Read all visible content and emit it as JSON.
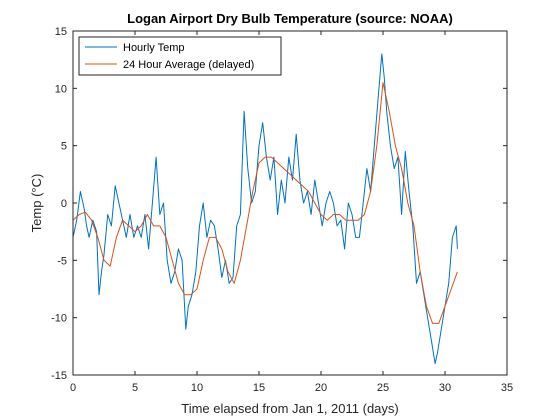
{
  "chart_data": {
    "type": "line",
    "title": "Logan Airport Dry Bulb Temperature (source: NOAA)",
    "xlabel": "Time elapsed from Jan 1, 2011 (days)",
    "ylabel": "Temp (°C)",
    "xlim": [
      0,
      35
    ],
    "ylim": [
      -15,
      15
    ],
    "xticks": [
      "0",
      "5",
      "10",
      "15",
      "20",
      "25",
      "30",
      "35"
    ],
    "yticks": [
      "15",
      "10",
      "5",
      "0",
      "-5",
      "-10",
      "-15"
    ],
    "grid": false,
    "legend_position": "top-left",
    "series": [
      {
        "name": "Hourly Temp",
        "color": "#0072BD",
        "x": [
          0,
          0.3,
          0.6,
          0.9,
          1.1,
          1.3,
          1.6,
          1.9,
          2.1,
          2.3,
          2.5,
          2.8,
          3.1,
          3.4,
          3.7,
          4.0,
          4.3,
          4.6,
          4.9,
          5.2,
          5.5,
          5.8,
          6.1,
          6.4,
          6.7,
          7.0,
          7.3,
          7.6,
          7.9,
          8.2,
          8.5,
          8.8,
          9.1,
          9.3,
          9.6,
          9.9,
          10.2,
          10.5,
          10.8,
          11.1,
          11.4,
          11.7,
          12.0,
          12.3,
          12.6,
          12.9,
          13.2,
          13.5,
          13.8,
          14.1,
          14.4,
          14.7,
          15.0,
          15.3,
          15.6,
          15.9,
          16.2,
          16.5,
          16.8,
          17.1,
          17.4,
          17.7,
          18.0,
          18.3,
          18.6,
          18.9,
          19.2,
          19.5,
          19.8,
          20.1,
          20.4,
          20.7,
          21.0,
          21.3,
          21.6,
          21.9,
          22.2,
          22.5,
          22.8,
          23.1,
          23.4,
          23.7,
          24.0,
          24.3,
          24.6,
          24.9,
          25.1,
          25.3,
          25.6,
          25.9,
          26.2,
          26.5,
          26.8,
          27.1,
          27.4,
          27.7,
          28.0,
          28.3,
          28.6,
          28.9,
          29.2,
          29.4,
          29.7,
          30.0,
          30.3,
          30.6,
          30.9,
          31.0
        ],
        "y": [
          -3,
          -1.5,
          1,
          -0.5,
          -2,
          -3,
          -1.5,
          -2.5,
          -8,
          -6,
          -4.5,
          -1,
          -2,
          1.5,
          0,
          -1.5,
          -3,
          -1,
          -3,
          -2,
          -3,
          -1,
          -4,
          0,
          4,
          -1,
          0,
          -5,
          -7,
          -6,
          -4,
          -5,
          -11,
          -9,
          -8,
          -6,
          -2,
          0,
          -3,
          -1.5,
          -2,
          -4,
          -6.5,
          -5,
          -7,
          -6.5,
          -2,
          -1,
          8,
          3,
          0,
          1,
          5,
          7,
          4,
          2,
          4,
          -1,
          2,
          0,
          4,
          2,
          6,
          2,
          0,
          1,
          -1,
          2,
          0,
          -2,
          0,
          1,
          0,
          -2,
          -1.5,
          -4,
          0,
          -1,
          -3,
          -3,
          0,
          3,
          1,
          5,
          9,
          13,
          11,
          8,
          5,
          3,
          4,
          -1,
          4.5,
          1,
          -2,
          -7,
          -6,
          -8,
          -10,
          -12,
          -14,
          -13,
          -11,
          -9,
          -7,
          -3,
          -2,
          -4
        ]
      },
      {
        "name": "24 Hour Average (delayed)",
        "color": "#D95319",
        "x": [
          0,
          0.5,
          1.0,
          1.5,
          2.0,
          2.5,
          3.0,
          3.5,
          4.0,
          4.5,
          5.0,
          5.5,
          6.0,
          6.5,
          7.0,
          7.5,
          8.0,
          8.5,
          9.0,
          9.5,
          10.0,
          10.5,
          11.0,
          11.5,
          12.0,
          12.5,
          13.0,
          13.5,
          14.0,
          14.5,
          15.0,
          15.5,
          16.0,
          16.5,
          17.0,
          17.5,
          18.0,
          18.5,
          19.0,
          19.5,
          20.0,
          20.5,
          21.0,
          21.5,
          22.0,
          22.5,
          23.0,
          23.5,
          24.0,
          24.5,
          25.0,
          25.5,
          26.0,
          26.5,
          27.0,
          27.5,
          28.0,
          28.5,
          29.0,
          29.5,
          30.0,
          30.5,
          31.0
        ],
        "y": [
          -1.5,
          -1,
          -0.8,
          -1.5,
          -3,
          -5,
          -5.5,
          -3,
          -1.5,
          -2,
          -2.5,
          -2,
          -1,
          -2,
          -2,
          -3,
          -5,
          -7,
          -8,
          -8,
          -7.5,
          -5,
          -3,
          -3,
          -4,
          -6,
          -7,
          -5,
          -2,
          1,
          3.5,
          4,
          4,
          3.5,
          3,
          2.5,
          2,
          1.5,
          1,
          0,
          -1,
          -1.5,
          -1,
          -1,
          -1.5,
          -1.5,
          -1.5,
          -1,
          1,
          5,
          10.5,
          8,
          5,
          3,
          0,
          -2,
          -6,
          -9,
          -10.5,
          -10.5,
          -9,
          -7.5,
          -6
        ]
      }
    ]
  }
}
